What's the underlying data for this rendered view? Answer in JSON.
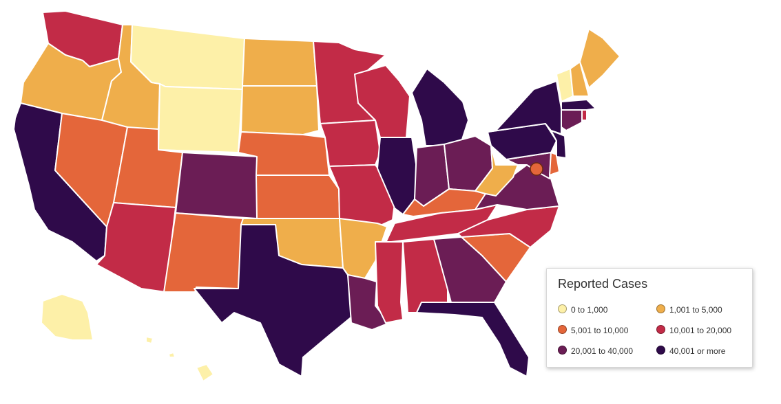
{
  "legend": {
    "title": "Reported Cases",
    "items": [
      {
        "label": "0 to 1,000",
        "color": "#fdf0a8"
      },
      {
        "label": "1,001 to 5,000",
        "color": "#efae4b"
      },
      {
        "label": "5,001 to 10,000",
        "color": "#e4663a"
      },
      {
        "label": "10,001 to 20,000",
        "color": "#c22b47"
      },
      {
        "label": "20,001 to 40,000",
        "color": "#6b1d55"
      },
      {
        "label": "40,001 or more",
        "color": "#2f0a4a"
      }
    ]
  },
  "states": [
    {
      "code": "WA",
      "bin": 3
    },
    {
      "code": "OR",
      "bin": 1
    },
    {
      "code": "CA",
      "bin": 5
    },
    {
      "code": "ID",
      "bin": 1
    },
    {
      "code": "NV",
      "bin": 2
    },
    {
      "code": "MT",
      "bin": 0
    },
    {
      "code": "WY",
      "bin": 0
    },
    {
      "code": "UT",
      "bin": 2
    },
    {
      "code": "AZ",
      "bin": 3
    },
    {
      "code": "CO",
      "bin": 4
    },
    {
      "code": "NM",
      "bin": 2
    },
    {
      "code": "ND",
      "bin": 1
    },
    {
      "code": "SD",
      "bin": 1
    },
    {
      "code": "NE",
      "bin": 2
    },
    {
      "code": "KS",
      "bin": 2
    },
    {
      "code": "OK",
      "bin": 1
    },
    {
      "code": "TX",
      "bin": 5
    },
    {
      "code": "MN",
      "bin": 3
    },
    {
      "code": "IA",
      "bin": 3
    },
    {
      "code": "MO",
      "bin": 3
    },
    {
      "code": "AR",
      "bin": 1
    },
    {
      "code": "LA",
      "bin": 4
    },
    {
      "code": "WI",
      "bin": 3
    },
    {
      "code": "IL",
      "bin": 5
    },
    {
      "code": "MI",
      "bin": 5
    },
    {
      "code": "IN",
      "bin": 4
    },
    {
      "code": "OH",
      "bin": 4
    },
    {
      "code": "KY",
      "bin": 2
    },
    {
      "code": "TN",
      "bin": 3
    },
    {
      "code": "MS",
      "bin": 3
    },
    {
      "code": "AL",
      "bin": 3
    },
    {
      "code": "GA",
      "bin": 4
    },
    {
      "code": "FL",
      "bin": 5
    },
    {
      "code": "SC",
      "bin": 2
    },
    {
      "code": "NC",
      "bin": 3
    },
    {
      "code": "VA",
      "bin": 4
    },
    {
      "code": "WV",
      "bin": 1
    },
    {
      "code": "MD",
      "bin": 4
    },
    {
      "code": "DE",
      "bin": 2
    },
    {
      "code": "PA",
      "bin": 5
    },
    {
      "code": "NJ",
      "bin": 5
    },
    {
      "code": "NY",
      "bin": 5
    },
    {
      "code": "CT",
      "bin": 4
    },
    {
      "code": "RI",
      "bin": 3
    },
    {
      "code": "MA",
      "bin": 5
    },
    {
      "code": "VT",
      "bin": 0
    },
    {
      "code": "NH",
      "bin": 1
    },
    {
      "code": "ME",
      "bin": 1
    },
    {
      "code": "AK",
      "bin": 0
    },
    {
      "code": "HI",
      "bin": 0
    },
    {
      "code": "DC",
      "bin": 2
    }
  ]
}
